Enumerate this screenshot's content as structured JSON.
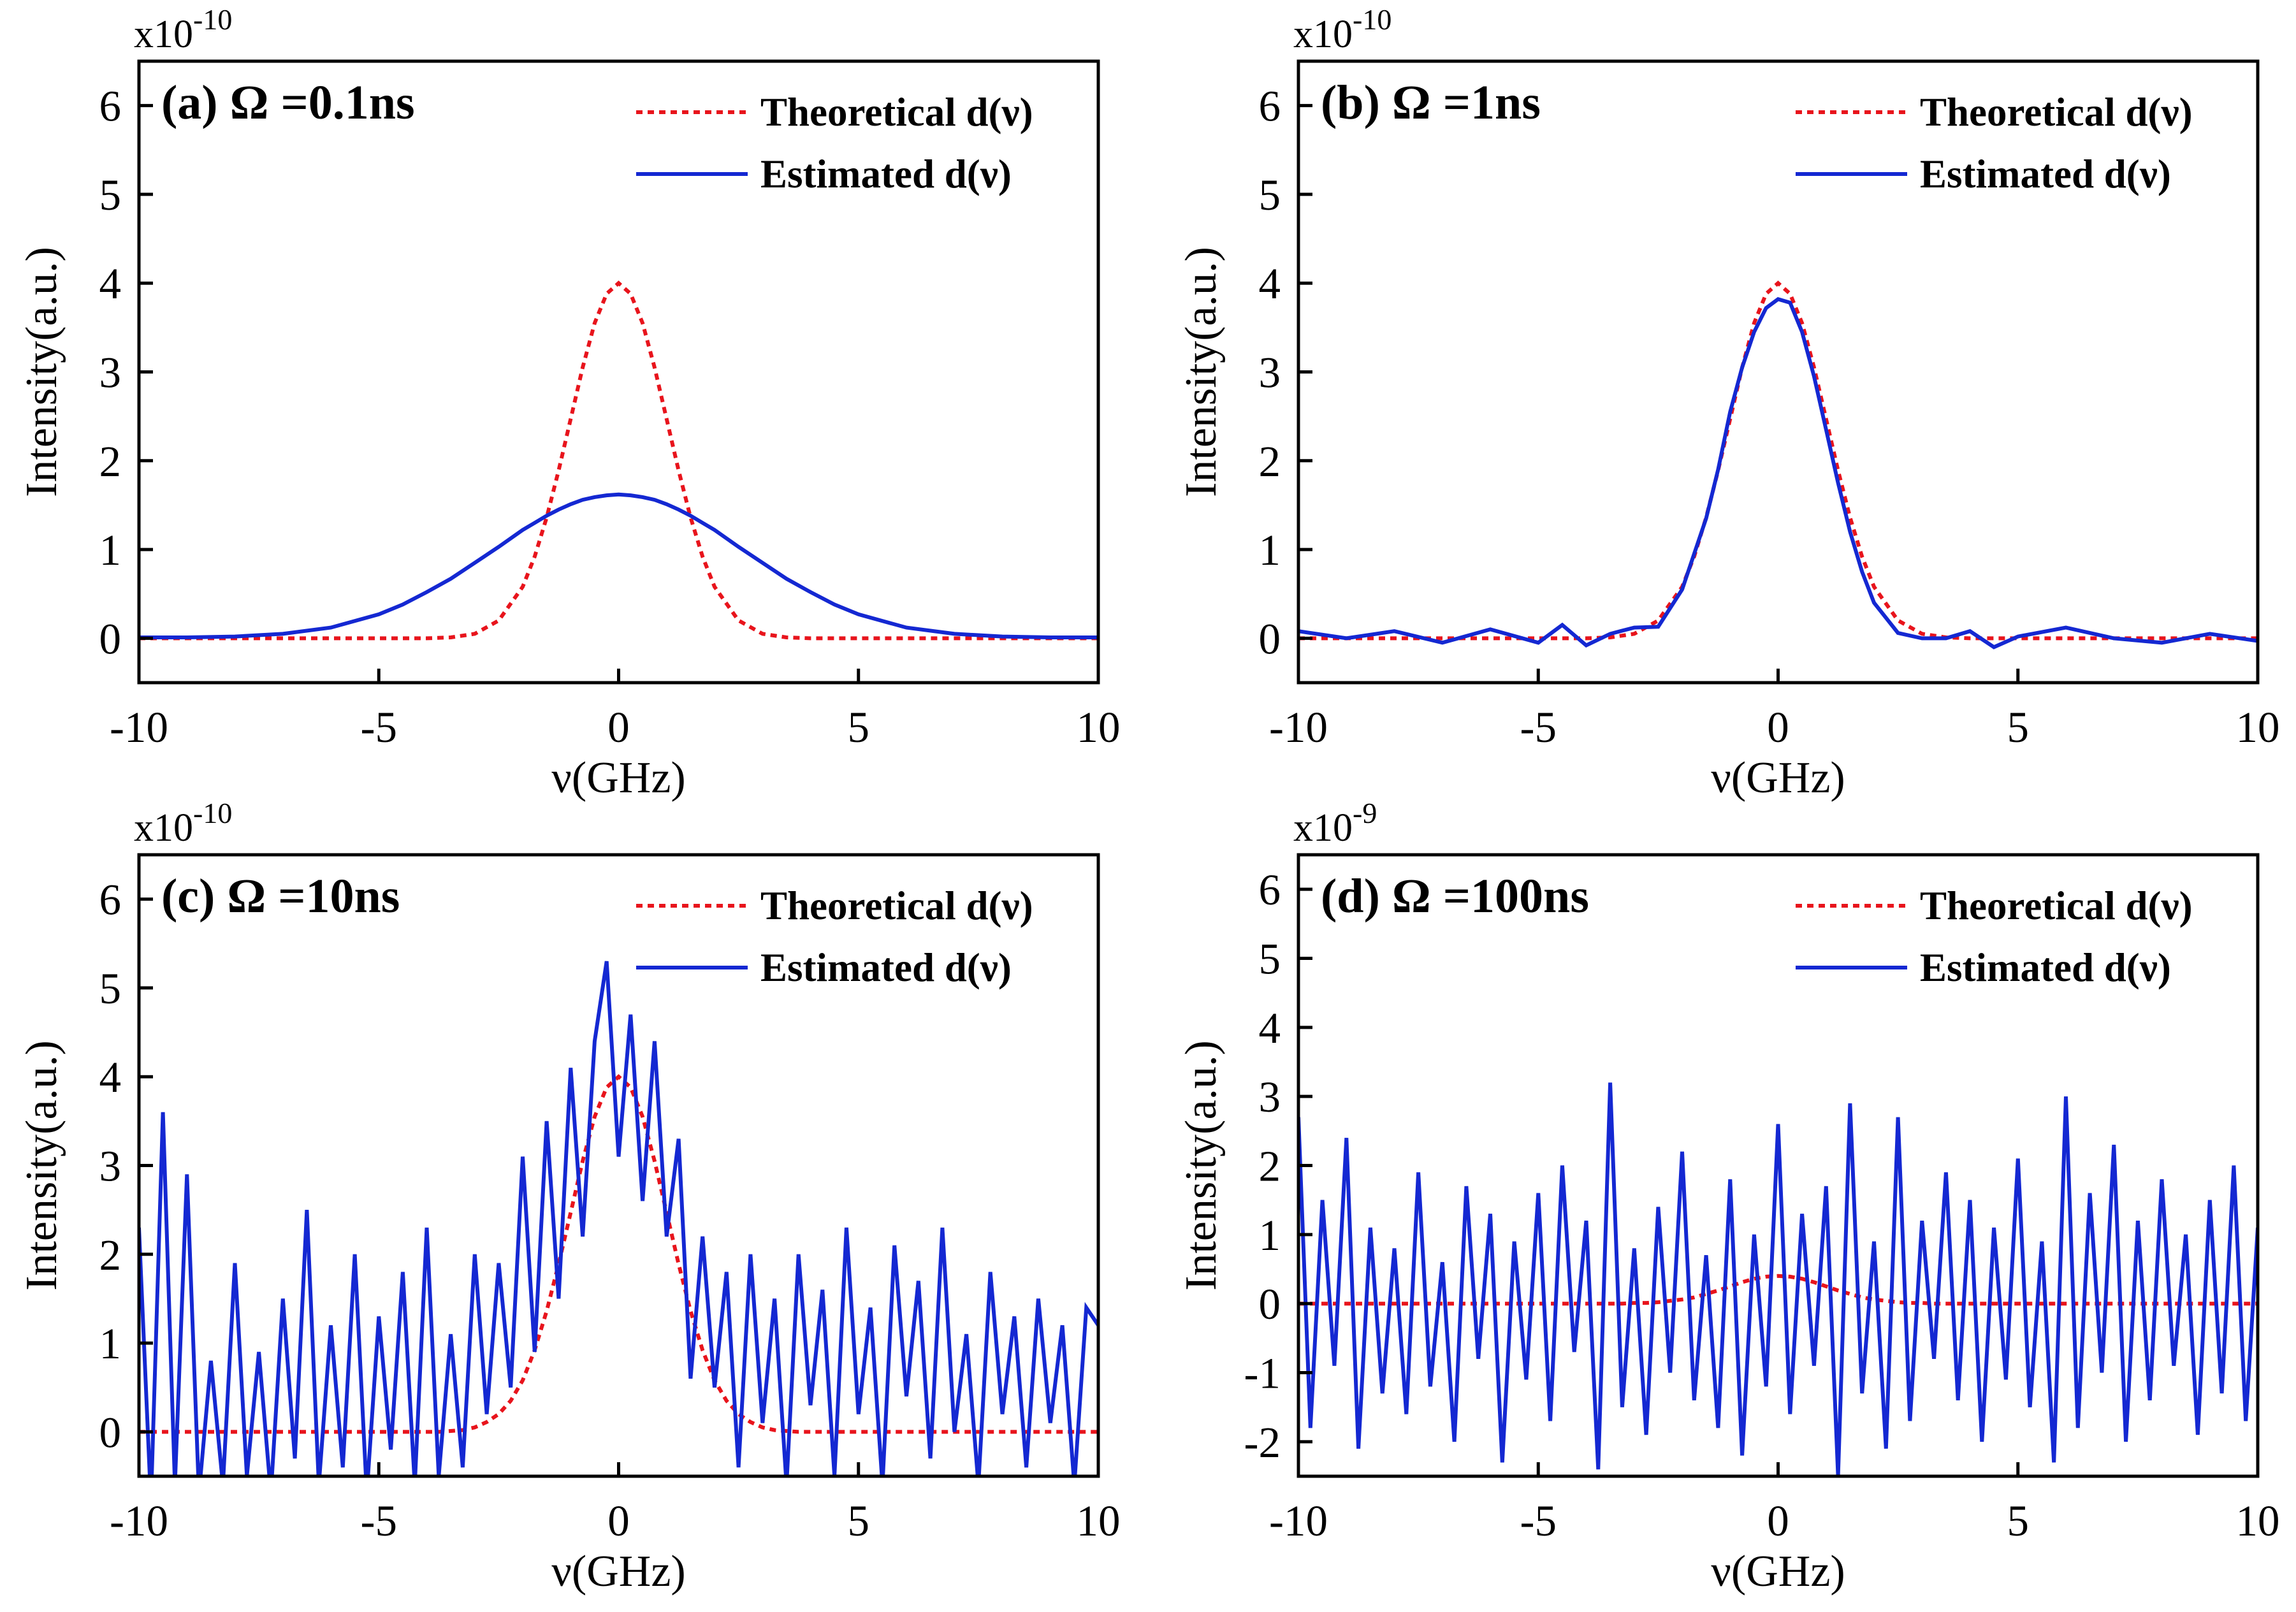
{
  "chart_data": [
    {
      "type": "line",
      "title": "(a) Ω =0.1ns",
      "xlabel": "ν(GHz)",
      "ylabel": "Intensity(a.u.)",
      "y_multiplier": {
        "base": "x10",
        "exponent": "-10"
      },
      "xlim": [
        -10,
        10
      ],
      "ylim": [
        -0.5,
        6.5
      ],
      "xticks": [
        -10,
        -5,
        0,
        5,
        10
      ],
      "yticks": [
        0,
        1,
        2,
        3,
        4,
        5,
        6
      ],
      "x": [
        -10,
        -9,
        -8,
        -7,
        -6,
        -5,
        -4.5,
        -4,
        -3.5,
        -3,
        -2.5,
        -2,
        -1.75,
        -1.5,
        -1.25,
        -1,
        -0.75,
        -0.5,
        -0.25,
        0,
        0.25,
        0.5,
        0.75,
        1,
        1.25,
        1.5,
        1.75,
        2,
        2.5,
        3,
        3.5,
        4,
        4.5,
        5,
        6,
        7,
        8,
        9,
        10
      ],
      "series": [
        {
          "name": "Theoretical d(ν)",
          "color": "#e8141c",
          "style": "dotted",
          "values": [
            0,
            0,
            0,
            0,
            0,
            0,
            0,
            0,
            0.01,
            0.05,
            0.2,
            0.58,
            0.92,
            1.36,
            1.89,
            2.47,
            3.05,
            3.55,
            3.88,
            4,
            3.88,
            3.55,
            3.05,
            2.47,
            1.89,
            1.36,
            0.92,
            0.58,
            0.2,
            0.05,
            0.01,
            0,
            0,
            0,
            0,
            0,
            0,
            0,
            0
          ]
        },
        {
          "name": "Estimated d(ν)",
          "color": "#1428d2",
          "style": "solid",
          "values": [
            0.01,
            0.01,
            0.02,
            0.05,
            0.12,
            0.27,
            0.38,
            0.52,
            0.67,
            0.85,
            1.03,
            1.22,
            1.3,
            1.38,
            1.45,
            1.51,
            1.56,
            1.59,
            1.61,
            1.62,
            1.61,
            1.59,
            1.56,
            1.51,
            1.45,
            1.38,
            1.3,
            1.22,
            1.03,
            0.85,
            0.67,
            0.52,
            0.38,
            0.27,
            0.12,
            0.05,
            0.02,
            0.01,
            0.01
          ]
        }
      ]
    },
    {
      "type": "line",
      "title": "(b) Ω =1ns",
      "xlabel": "ν(GHz)",
      "ylabel": "Intensity(a.u.)",
      "y_multiplier": {
        "base": "x10",
        "exponent": "-10"
      },
      "xlim": [
        -10,
        10
      ],
      "ylim": [
        -0.5,
        6.5
      ],
      "xticks": [
        -10,
        -5,
        0,
        5,
        10
      ],
      "yticks": [
        0,
        1,
        2,
        3,
        4,
        5,
        6
      ],
      "x": [
        -10,
        -9,
        -8,
        -7,
        -6,
        -5,
        -4.5,
        -4,
        -3.5,
        -3,
        -2.5,
        -2,
        -1.75,
        -1.5,
        -1.25,
        -1,
        -0.75,
        -0.5,
        -0.25,
        0,
        0.25,
        0.5,
        0.75,
        1,
        1.25,
        1.5,
        1.75,
        2,
        2.5,
        3,
        3.5,
        4,
        4.5,
        5,
        6,
        7,
        8,
        9,
        10
      ],
      "series": [
        {
          "name": "Theoretical d(ν)",
          "color": "#e8141c",
          "style": "dotted",
          "values": [
            0,
            0,
            0,
            0,
            0,
            0,
            0,
            0,
            0.01,
            0.05,
            0.2,
            0.58,
            0.92,
            1.36,
            1.89,
            2.47,
            3.05,
            3.55,
            3.88,
            4,
            3.88,
            3.55,
            3.05,
            2.47,
            1.89,
            1.36,
            0.92,
            0.58,
            0.2,
            0.05,
            0.01,
            0,
            0,
            0,
            0,
            0,
            0,
            0,
            0
          ]
        },
        {
          "name": "Estimated d(ν)",
          "color": "#1428d2",
          "style": "solid",
          "values": [
            0.08,
            0,
            0.08,
            -0.05,
            0.1,
            -0.05,
            0.15,
            -0.08,
            0.05,
            0.12,
            0.13,
            0.55,
            0.95,
            1.35,
            1.9,
            2.55,
            3.05,
            3.45,
            3.72,
            3.82,
            3.78,
            3.45,
            2.95,
            2.35,
            1.75,
            1.2,
            0.75,
            0.4,
            0.06,
            0,
            0,
            0.08,
            -0.1,
            0.02,
            0.12,
            0,
            -0.05,
            0.05,
            -0.03
          ]
        }
      ]
    },
    {
      "type": "line",
      "title": "(c) Ω =10ns",
      "xlabel": "ν(GHz)",
      "ylabel": "Intensity(a.u.)",
      "y_multiplier": {
        "base": "x10",
        "exponent": "-10"
      },
      "xlim": [
        -10,
        10
      ],
      "ylim": [
        -0.5,
        6.5
      ],
      "xticks": [
        -10,
        -5,
        0,
        5,
        10
      ],
      "yticks": [
        0,
        1,
        2,
        3,
        4,
        5,
        6
      ],
      "x": [
        -10,
        -9.75,
        -9.5,
        -9.25,
        -9,
        -8.75,
        -8.5,
        -8.25,
        -8,
        -7.75,
        -7.5,
        -7.25,
        -7,
        -6.75,
        -6.5,
        -6.25,
        -6,
        -5.75,
        -5.5,
        -5.25,
        -5,
        -4.75,
        -4.5,
        -4.25,
        -4,
        -3.75,
        -3.5,
        -3.25,
        -3,
        -2.75,
        -2.5,
        -2.25,
        -2,
        -1.75,
        -1.5,
        -1.25,
        -1,
        -0.75,
        -0.5,
        -0.25,
        0,
        0.25,
        0.5,
        0.75,
        1,
        1.25,
        1.5,
        1.75,
        2,
        2.25,
        2.5,
        2.75,
        3,
        3.25,
        3.5,
        3.75,
        4,
        4.25,
        4.5,
        4.75,
        5,
        5.25,
        5.5,
        5.75,
        6,
        6.25,
        6.5,
        6.75,
        7,
        7.25,
        7.5,
        7.75,
        8,
        8.25,
        8.5,
        8.75,
        9,
        9.25,
        9.5,
        9.75,
        10
      ],
      "series": [
        {
          "name": "Theoretical d(ν)",
          "color": "#e8141c",
          "style": "dotted",
          "values": [
            0,
            0,
            0,
            0,
            0,
            0,
            0,
            0,
            0,
            0,
            0,
            0,
            0,
            0,
            0,
            0,
            0,
            0,
            0,
            0,
            0,
            0,
            0,
            0,
            0,
            0,
            0.01,
            0.02,
            0.05,
            0.11,
            0.2,
            0.35,
            0.58,
            0.92,
            1.36,
            1.89,
            2.47,
            3.05,
            3.55,
            3.88,
            4,
            3.88,
            3.55,
            3.05,
            2.47,
            1.89,
            1.36,
            0.92,
            0.58,
            0.35,
            0.2,
            0.11,
            0.05,
            0.02,
            0.01,
            0,
            0,
            0,
            0,
            0,
            0,
            0,
            0,
            0,
            0,
            0,
            0,
            0,
            0,
            0,
            0,
            0,
            0,
            0,
            0,
            0,
            0,
            0,
            0,
            0,
            0
          ]
        },
        {
          "name": "Estimated d(ν)",
          "color": "#1428d2",
          "style": "solid",
          "values": [
            2.3,
            -0.8,
            3.6,
            -0.6,
            2.9,
            -0.7,
            0.8,
            -0.6,
            1.9,
            -0.5,
            0.9,
            -0.7,
            1.5,
            -0.3,
            2.5,
            -0.6,
            1.2,
            -0.4,
            2.0,
            -0.7,
            1.3,
            -0.2,
            1.8,
            -0.6,
            2.3,
            -0.5,
            1.1,
            -0.4,
            2.0,
            0.2,
            1.9,
            0.5,
            3.1,
            0.9,
            3.5,
            1.5,
            4.1,
            2.2,
            4.4,
            5.3,
            3.1,
            4.7,
            2.6,
            4.4,
            2.2,
            3.3,
            0.6,
            2.2,
            0.5,
            1.8,
            -0.4,
            2.0,
            0.1,
            1.5,
            -0.6,
            2.0,
            0.3,
            1.6,
            -0.5,
            2.3,
            0.2,
            1.4,
            -0.6,
            2.1,
            0.4,
            1.7,
            -0.3,
            2.3,
            0.0,
            1.1,
            -0.6,
            1.8,
            0.2,
            1.3,
            -0.4,
            1.5,
            0.1,
            1.2,
            -0.6,
            1.4,
            1.2
          ]
        }
      ]
    },
    {
      "type": "line",
      "title": "(d) Ω =100ns",
      "xlabel": "ν(GHz)",
      "ylabel": "Intensity(a.u.)",
      "y_multiplier": {
        "base": "x10",
        "exponent": "-9"
      },
      "xlim": [
        -10,
        10
      ],
      "ylim": [
        -2.5,
        6.5
      ],
      "xticks": [
        -10,
        -5,
        0,
        5,
        10
      ],
      "yticks": [
        -2,
        -1,
        0,
        1,
        2,
        3,
        4,
        5,
        6
      ],
      "x": [
        -10,
        -9.75,
        -9.5,
        -9.25,
        -9,
        -8.75,
        -8.5,
        -8.25,
        -8,
        -7.75,
        -7.5,
        -7.25,
        -7,
        -6.75,
        -6.5,
        -6.25,
        -6,
        -5.75,
        -5.5,
        -5.25,
        -5,
        -4.75,
        -4.5,
        -4.25,
        -4,
        -3.75,
        -3.5,
        -3.25,
        -3,
        -2.75,
        -2.5,
        -2.25,
        -2,
        -1.75,
        -1.5,
        -1.25,
        -1,
        -0.75,
        -0.5,
        -0.25,
        0,
        0.25,
        0.5,
        0.75,
        1,
        1.25,
        1.5,
        1.75,
        2,
        2.25,
        2.5,
        2.75,
        3,
        3.25,
        3.5,
        3.75,
        4,
        4.25,
        4.5,
        4.75,
        5,
        5.25,
        5.5,
        5.75,
        6,
        6.25,
        6.5,
        6.75,
        7,
        7.25,
        7.5,
        7.75,
        8,
        8.25,
        8.5,
        8.75,
        9,
        9.25,
        9.5,
        9.75,
        10
      ],
      "series": [
        {
          "name": "Theoretical d(ν)",
          "color": "#e8141c",
          "style": "dotted",
          "values": [
            0,
            0,
            0,
            0,
            0,
            0,
            0,
            0,
            0,
            0,
            0,
            0,
            0,
            0,
            0,
            0,
            0,
            0,
            0,
            0,
            0,
            0,
            0,
            0,
            0,
            0,
            0,
            0,
            0.01,
            0.01,
            0.02,
            0.04,
            0.06,
            0.09,
            0.14,
            0.19,
            0.25,
            0.31,
            0.36,
            0.39,
            0.4,
            0.39,
            0.36,
            0.31,
            0.25,
            0.19,
            0.14,
            0.09,
            0.06,
            0.04,
            0.02,
            0.01,
            0.01,
            0,
            0,
            0,
            0,
            0,
            0,
            0,
            0,
            0,
            0,
            0,
            0,
            0,
            0,
            0,
            0,
            0,
            0,
            0,
            0,
            0,
            0,
            0,
            0,
            0,
            0,
            0,
            0
          ]
        },
        {
          "name": "Estimated d(ν)",
          "color": "#1428d2",
          "style": "solid",
          "values": [
            2.7,
            -1.8,
            1.5,
            -0.9,
            2.4,
            -2.1,
            1.1,
            -1.3,
            0.8,
            -1.6,
            1.9,
            -1.2,
            0.6,
            -2.0,
            1.7,
            -0.8,
            1.3,
            -2.3,
            0.9,
            -1.1,
            1.6,
            -1.7,
            2.0,
            -0.7,
            1.2,
            -2.4,
            3.2,
            -1.5,
            0.8,
            -1.9,
            1.4,
            -1.0,
            2.2,
            -1.4,
            0.7,
            -1.8,
            1.8,
            -2.2,
            1.0,
            -1.2,
            2.6,
            -1.6,
            1.3,
            -0.9,
            1.7,
            -2.5,
            2.9,
            -1.3,
            0.9,
            -2.1,
            2.7,
            -1.7,
            1.2,
            -0.8,
            1.9,
            -1.4,
            1.5,
            -2.0,
            1.1,
            -1.1,
            2.1,
            -1.5,
            0.9,
            -2.3,
            3.0,
            -1.8,
            1.6,
            -1.0,
            2.3,
            -2.0,
            1.2,
            -1.4,
            1.8,
            -0.9,
            1.0,
            -1.9,
            1.5,
            -1.3,
            2.0,
            -1.7,
            1.1
          ]
        }
      ]
    }
  ]
}
